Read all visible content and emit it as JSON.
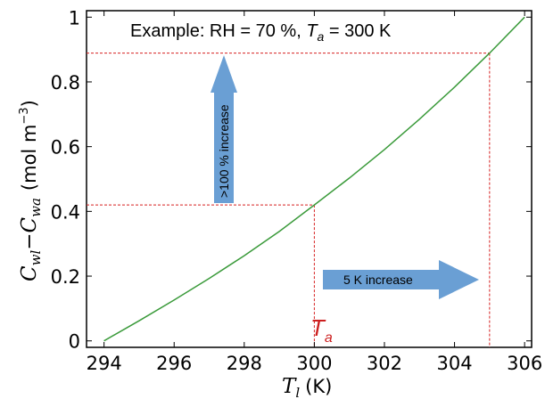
{
  "chart_data": {
    "type": "line",
    "x": [
      294,
      295,
      296,
      297,
      298,
      299,
      300,
      301,
      302,
      303,
      304,
      305,
      306
    ],
    "series": [
      {
        "values": [
          0.0,
          0.062,
          0.126,
          0.193,
          0.263,
          0.338,
          0.42,
          0.503,
          0.591,
          0.685,
          0.784,
          0.889,
          1.0
        ],
        "color": "#3a9a3a"
      }
    ],
    "xlim": [
      293.5,
      306.2
    ],
    "ylim": [
      -0.02,
      1.02
    ],
    "xticks": [
      "294",
      "296",
      "298",
      "300",
      "302",
      "304",
      "306"
    ],
    "yticks": [
      "0",
      "0.2",
      "0.4",
      "0.6",
      "0.8",
      "1"
    ],
    "xlabel": {
      "symbol": "T",
      "sub": "l",
      "unit": "(K)"
    },
    "ylabel": {
      "c1": "C",
      "s1": "wl",
      "minus": "−",
      "c2": "C",
      "s2": "wa",
      "unit": "(mol m",
      "exp": "−3",
      "close": ")"
    },
    "title": {
      "prefix": "Example: RH = 70 %, ",
      "T": "T",
      "sub": "a",
      "suffix": " = 300 K"
    },
    "reference_lines": {
      "color": "#d62020",
      "points": [
        {
          "x": 300,
          "y": 0.42
        },
        {
          "x": 305,
          "y": 0.889
        }
      ]
    },
    "marker_label": {
      "T": "T",
      "sub": "a"
    },
    "arrows": {
      "vertical": {
        "text": ">100 % increase",
        "color": "#6a9fd4"
      },
      "horizontal": {
        "text": "5 K increase",
        "color": "#6a9fd4"
      }
    },
    "grid": false
  }
}
